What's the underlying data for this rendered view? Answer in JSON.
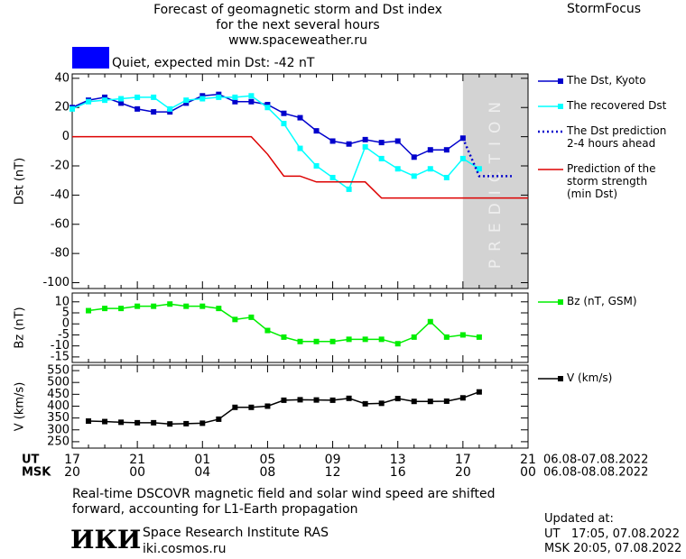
{
  "header": {
    "title": "Forecast of geomagnetic storm and Dst index\nfor the next several hours\nwww.spaceweather.ru",
    "brand": "StormFocus"
  },
  "chart_data": [
    {
      "type": "line",
      "ylabel": "Dst (nT)",
      "status": "Quiet, expected min Dst: -42 nT",
      "status_color": "#0000ff",
      "band_label": "PREDICTION",
      "ylim": [
        -104,
        43
      ],
      "yticks": [
        40,
        20,
        0,
        -20,
        -40,
        -60,
        -80,
        -100
      ],
      "series": [
        {
          "name": "The Dst, Kyoto",
          "color": "#0000cc",
          "marker": "square",
          "values": [
            20,
            25,
            27,
            23,
            19,
            17,
            17,
            23,
            28,
            29,
            24,
            24,
            22,
            16,
            13,
            4,
            -3,
            -5,
            -2,
            -4,
            -3,
            -14,
            -9,
            -9,
            -1,
            null,
            null,
            null,
            null
          ]
        },
        {
          "name": "The recovered Dst",
          "color": "#00ffff",
          "marker": "square",
          "values": [
            19,
            24,
            25,
            26,
            27,
            27,
            19,
            25,
            26,
            27,
            27,
            28,
            20,
            9,
            -8,
            -20,
            -28,
            -36,
            -7,
            -15,
            -22,
            -27,
            -22,
            -28,
            -15,
            -22,
            null,
            null,
            null
          ]
        },
        {
          "name": "The Dst prediction\n2-4 hours ahead",
          "color": "#0000cc",
          "dash": "dotted",
          "values": [
            null,
            null,
            null,
            null,
            null,
            null,
            null,
            null,
            null,
            null,
            null,
            null,
            null,
            null,
            null,
            null,
            null,
            null,
            null,
            null,
            null,
            null,
            null,
            null,
            -1,
            -27,
            -27,
            -27,
            null
          ]
        },
        {
          "name": "Prediction of the\nstorm strength\n(min Dst)",
          "color": "#dd0000",
          "values": [
            0,
            0,
            0,
            0,
            0,
            0,
            0,
            0,
            0,
            0,
            0,
            0,
            -12,
            -27,
            -27,
            -31,
            -31,
            -31,
            -31,
            -42,
            -42,
            -42,
            -42,
            -42,
            -42,
            -42,
            -42,
            -42,
            -42
          ]
        }
      ]
    },
    {
      "type": "line",
      "ylabel": "Bz (nT)",
      "ylim": [
        -17.5,
        14
      ],
      "yticks": [
        10,
        5,
        0,
        -5,
        -10,
        -15
      ],
      "series": [
        {
          "name": "Bz (nT, GSM)",
          "color": "#00ee00",
          "marker": "square",
          "values": [
            null,
            6,
            7,
            7,
            8,
            8,
            9,
            8,
            8,
            7,
            2,
            3,
            -3,
            -6,
            -8,
            -8,
            -8,
            -7,
            -7,
            -7,
            -9,
            -6,
            1,
            -6,
            -5,
            -6,
            null,
            null,
            null
          ]
        }
      ]
    },
    {
      "type": "line",
      "ylabel": "V (km/s)",
      "ylim": [
        223,
        573
      ],
      "yticks": [
        550,
        500,
        450,
        400,
        350,
        300,
        250
      ],
      "series": [
        {
          "name": "V (km/s)",
          "color": "#000000",
          "marker": "square",
          "values": [
            null,
            337,
            335,
            332,
            330,
            330,
            325,
            326,
            328,
            345,
            395,
            395,
            400,
            425,
            427,
            426,
            425,
            433,
            410,
            412,
            432,
            420,
            420,
            421,
            435,
            460,
            null,
            null,
            null
          ]
        }
      ],
      "categories": [
        "17",
        null,
        null,
        null,
        "21",
        null,
        null,
        null,
        "01",
        null,
        null,
        null,
        "05",
        null,
        null,
        null,
        "09",
        null,
        null,
        null,
        "13",
        null,
        null,
        null,
        "17",
        null,
        null,
        null,
        "21"
      ],
      "secondary_categories": [
        "20",
        null,
        null,
        null,
        "00",
        null,
        null,
        null,
        "04",
        null,
        null,
        null,
        "08",
        null,
        null,
        null,
        "12",
        null,
        null,
        null,
        "16",
        null,
        null,
        null,
        "20",
        null,
        null,
        null,
        "00"
      ],
      "axis_rows": [
        {
          "label": "UT",
          "dates": "06.08-07.08.2022"
        },
        {
          "label": "MSK",
          "dates": "06.08-08.08.2022"
        }
      ]
    }
  ],
  "footer": {
    "note": "Real-time DSCOVR magnetic field and solar wind speed are shifted\nforward, accounting for L1-Earth propagation",
    "logo": "ИКИ",
    "institute": "Space Research Institute RAS",
    "site": "iki.cosmos.ru",
    "updated": "Updated at:",
    "updated_ut": "UT   17:05, 07.08.2022",
    "updated_msk": "MSK 20:05, 07.08.2022"
  }
}
